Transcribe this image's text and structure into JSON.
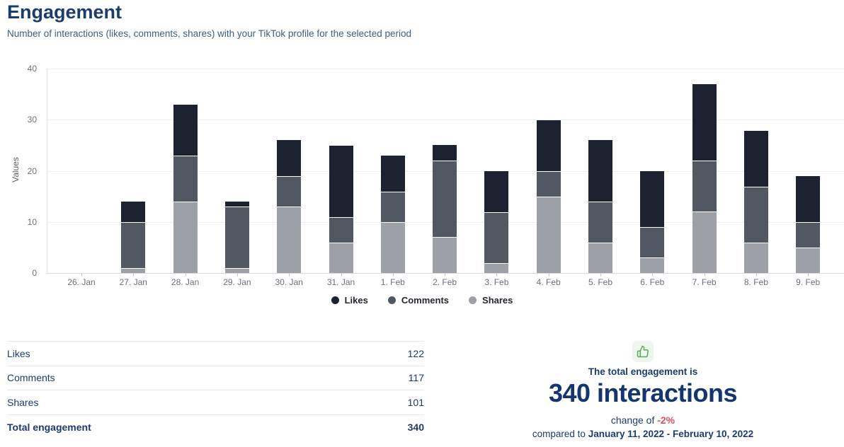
{
  "header": {
    "title": "Engagement",
    "subtitle": "Number of interactions (likes, comments, shares) with your TikTok profile for the selected period"
  },
  "chart_data": {
    "type": "bar",
    "stacked": true,
    "title": "Engagement",
    "xlabel": "",
    "ylabel": "Values",
    "ylim": [
      0,
      40
    ],
    "yticks": [
      0,
      10,
      20,
      30,
      40
    ],
    "grid": true,
    "legend_position": "bottom",
    "categories": [
      "26. Jan",
      "27. Jan",
      "28. Jan",
      "29. Jan",
      "30. Jan",
      "31. Jan",
      "1. Feb",
      "2. Feb",
      "3. Feb",
      "4. Feb",
      "5. Feb",
      "6. Feb",
      "7. Feb",
      "8. Feb",
      "9. Feb"
    ],
    "series": [
      {
        "name": "Likes",
        "color": "#1c2230",
        "values": [
          0,
          4,
          10,
          1,
          7,
          14,
          7,
          3,
          8,
          10,
          12,
          11,
          15,
          11,
          9
        ]
      },
      {
        "name": "Comments",
        "color": "#525861",
        "values": [
          0,
          9,
          9,
          12,
          6,
          5,
          6,
          15,
          10,
          5,
          8,
          6,
          10,
          11,
          5
        ]
      },
      {
        "name": "Shares",
        "color": "#9da0a6",
        "values": [
          0,
          1,
          14,
          1,
          13,
          6,
          10,
          7,
          2,
          15,
          6,
          3,
          12,
          6,
          5
        ]
      }
    ],
    "daily_totals": [
      0,
      14,
      33,
      14,
      26,
      25,
      23,
      25,
      20,
      30,
      26,
      20,
      37,
      28,
      19
    ]
  },
  "summary_table": {
    "rows": [
      {
        "label": "Likes",
        "value": "122"
      },
      {
        "label": "Comments",
        "value": "117"
      },
      {
        "label": "Shares",
        "value": "101"
      }
    ],
    "total": {
      "label": "Total engagement",
      "value": "340"
    }
  },
  "summary_panel": {
    "icon": "thumbs-up-icon",
    "line1": "The total engagement is",
    "headline": "340 interactions",
    "change_prefix": "change of ",
    "change_value": "-2%",
    "compare_prefix": "compared to ",
    "compare_range": "January 11, 2022 - February 10, 2022"
  },
  "colors": {
    "title_navy": "#1b3c6e",
    "headline_navy": "#14356e",
    "subtitle": "#3f5e7a",
    "negative_red": "#ea4b5f",
    "icon_green": "#57aa5b",
    "icon_green_bg": "#eef7ee",
    "likes": "#1c2230",
    "comments": "#525861",
    "shares": "#9da0a6"
  }
}
